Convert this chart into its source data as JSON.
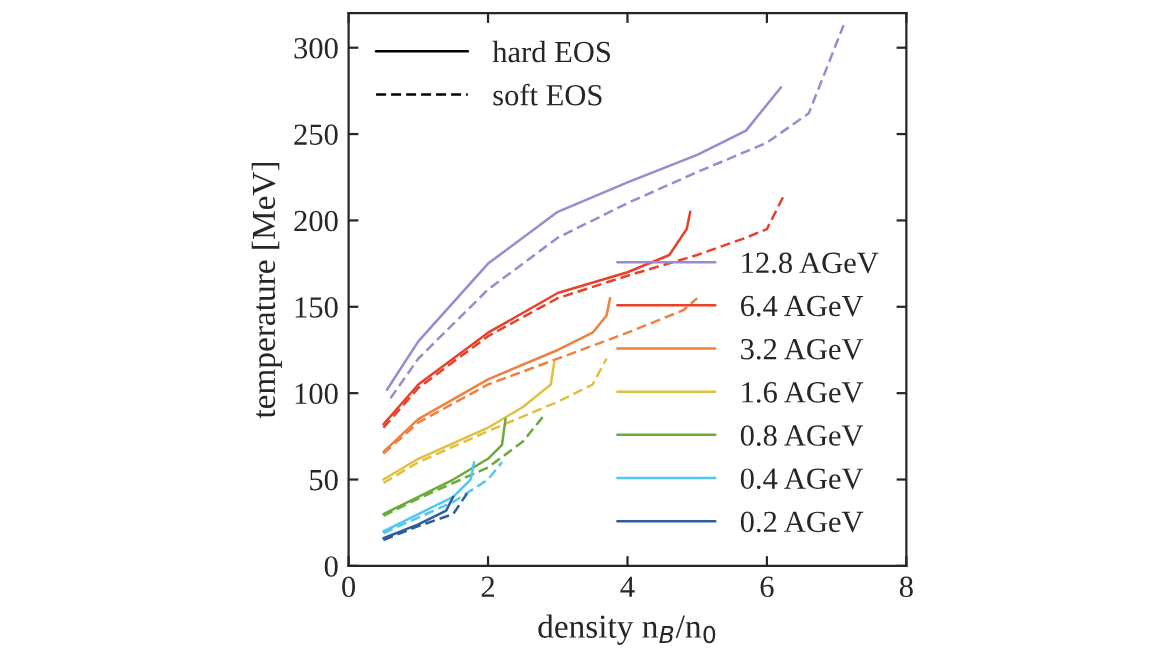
{
  "chart_data": {
    "type": "line",
    "xlabel": "density n$_{B}$/n$_{0}$",
    "ylabel": "temperature [MeV]",
    "xlim": [
      0,
      8
    ],
    "ylim": [
      0,
      320
    ],
    "xticks": [
      0,
      2,
      4,
      6,
      8
    ],
    "yticks": [
      0,
      50,
      100,
      150,
      200,
      250,
      300
    ],
    "grid": false,
    "legend": "bottom right",
    "annotations": [
      "hard EOS",
      "soft EOS"
    ],
    "series": [
      {
        "name": "12.8 AGeV",
        "color": "#9b8ad0",
        "line_style": "solid",
        "x": [
          0.55,
          1,
          2,
          3,
          4,
          5,
          5.7,
          6.2
        ],
        "values": [
          102,
          130,
          175,
          205,
          222,
          238,
          252,
          277
        ]
      },
      {
        "color": "#9b8ad0",
        "line_style": "dashed",
        "x": [
          0.6,
          1,
          2,
          3,
          4,
          5,
          6,
          6.6,
          7.1
        ],
        "values": [
          97,
          120,
          160,
          190,
          210,
          228,
          245,
          262,
          313
        ]
      },
      {
        "name": "6.4 AGeV",
        "color": "#e8402a",
        "line_style": "solid",
        "x": [
          0.5,
          1,
          2,
          3,
          4,
          4.6,
          4.85,
          4.9
        ],
        "values": [
          82,
          105,
          135,
          158,
          170,
          180,
          195,
          205
        ]
      },
      {
        "color": "#e8402a",
        "line_style": "dashed",
        "x": [
          0.5,
          1,
          2,
          3,
          4,
          5,
          5.7,
          6,
          6.25
        ],
        "values": [
          80,
          103,
          133,
          155,
          168,
          180,
          190,
          195,
          215
        ]
      },
      {
        "name": "3.2 AGeV",
        "color": "#f08040",
        "line_style": "solid",
        "x": [
          0.5,
          1,
          2,
          3,
          3.5,
          3.7,
          3.75
        ],
        "values": [
          66,
          85,
          108,
          125,
          135,
          145,
          155
        ]
      },
      {
        "color": "#f08040",
        "line_style": "dashed",
        "x": [
          0.5,
          1,
          2,
          3,
          4,
          4.8,
          5
        ],
        "values": [
          65,
          83,
          105,
          120,
          135,
          148,
          155
        ]
      },
      {
        "name": "1.6 AGeV",
        "color": "#e0c040",
        "line_style": "solid",
        "x": [
          0.5,
          1,
          2,
          2.5,
          2.9,
          2.95
        ],
        "values": [
          50,
          62,
          80,
          92,
          105,
          118
        ]
      },
      {
        "color": "#e0c040",
        "line_style": "dashed",
        "x": [
          0.5,
          1,
          2,
          3,
          3.5,
          3.7
        ],
        "values": [
          48,
          60,
          78,
          95,
          105,
          120
        ]
      },
      {
        "name": "0.8 AGeV",
        "color": "#6aab3a",
        "line_style": "solid",
        "x": [
          0.5,
          1,
          1.5,
          2,
          2.2,
          2.25
        ],
        "values": [
          30,
          40,
          50,
          62,
          70,
          85
        ]
      },
      {
        "color": "#6aab3a",
        "line_style": "dashed",
        "x": [
          0.5,
          1,
          2,
          2.5,
          2.8
        ],
        "values": [
          29,
          39,
          57,
          72,
          87
        ]
      },
      {
        "name": "0.4 AGeV",
        "color": "#50c8f0",
        "line_style": "solid",
        "x": [
          0.5,
          1,
          1.5,
          1.75,
          1.8
        ],
        "values": [
          20,
          30,
          40,
          50,
          60
        ]
      },
      {
        "color": "#50c8f0",
        "line_style": "dashed",
        "x": [
          0.5,
          1,
          1.5,
          2,
          2.2
        ],
        "values": [
          19,
          28,
          37,
          50,
          60
        ]
      },
      {
        "name": "0.2 AGeV",
        "color": "#2f5d9a",
        "line_style": "solid",
        "x": [
          0.5,
          1,
          1.4,
          1.5
        ],
        "values": [
          16,
          24,
          32,
          40
        ]
      },
      {
        "color": "#2f5d9a",
        "line_style": "dashed",
        "x": [
          0.5,
          1,
          1.5,
          1.7
        ],
        "values": [
          15,
          23,
          30,
          42
        ]
      }
    ]
  }
}
